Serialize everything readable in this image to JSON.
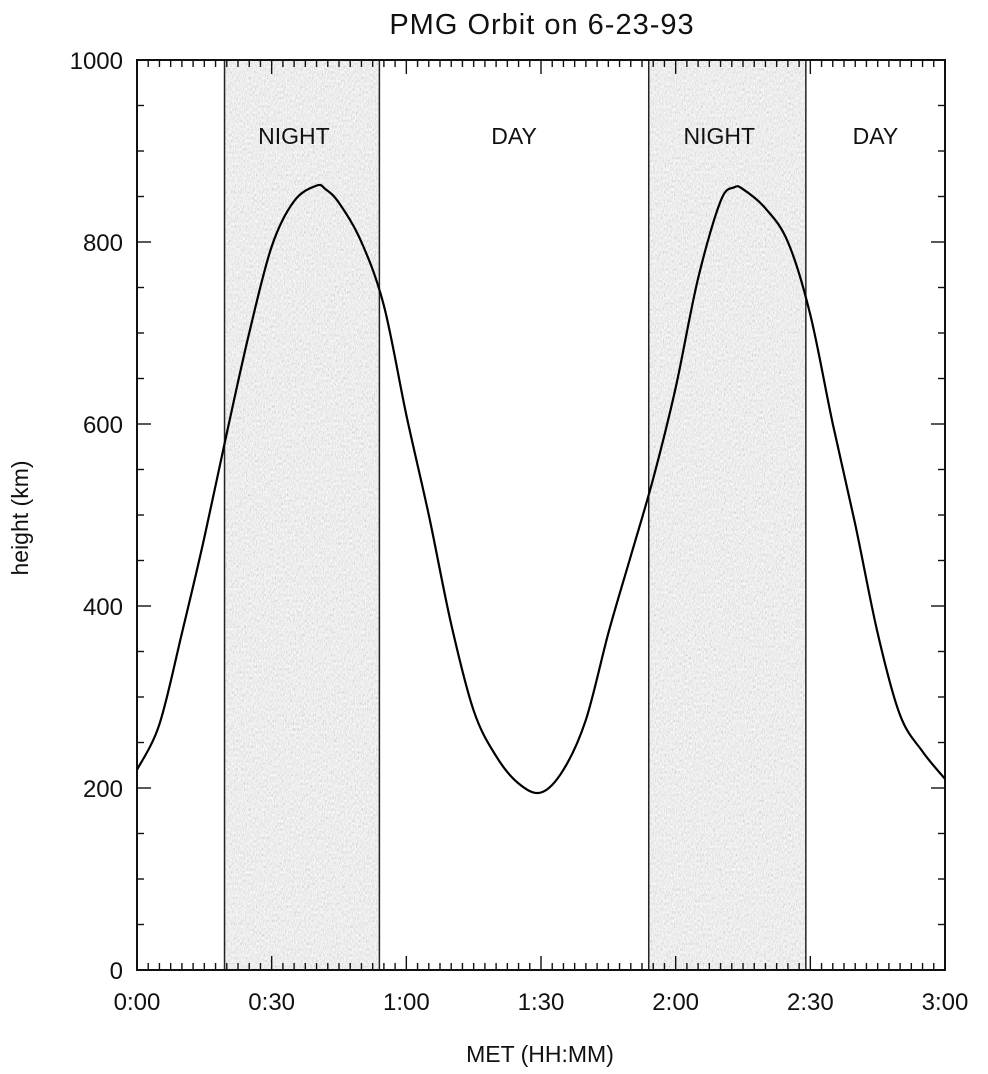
{
  "chart_data": {
    "type": "line",
    "title": "PMG Orbit on 6-23-93",
    "xlabel": "MET (HH:MM)",
    "ylabel": "height (km)",
    "xlim_minutes": [
      0,
      180
    ],
    "ylim": [
      0,
      1000
    ],
    "x_ticks": [
      {
        "value": 0,
        "label": "0:00"
      },
      {
        "value": 30,
        "label": "0:30"
      },
      {
        "value": 60,
        "label": "1:00"
      },
      {
        "value": 90,
        "label": "1:30"
      },
      {
        "value": 120,
        "label": "2:00"
      },
      {
        "value": 150,
        "label": "2:30"
      },
      {
        "value": 180,
        "label": "3:00"
      }
    ],
    "y_ticks": [
      {
        "value": 0,
        "label": "0"
      },
      {
        "value": 200,
        "label": "200"
      },
      {
        "value": 400,
        "label": "400"
      },
      {
        "value": 600,
        "label": "600"
      },
      {
        "value": 800,
        "label": "800"
      },
      {
        "value": 1000,
        "label": "1000"
      }
    ],
    "grid": false,
    "regions": [
      {
        "label": "NIGHT",
        "start": 19.5,
        "end": 54,
        "shaded": true
      },
      {
        "label": "DAY",
        "start": 54,
        "end": 114,
        "shaded": false
      },
      {
        "label": "NIGHT",
        "start": 114,
        "end": 149,
        "shaded": true
      },
      {
        "label": "DAY",
        "start": 149,
        "end": 180,
        "shaded": false
      }
    ],
    "series": [
      {
        "x": [
          0,
          5,
          10,
          15,
          20,
          25,
          30,
          35,
          40,
          42,
          45,
          50,
          55,
          60,
          65,
          70,
          75,
          80,
          85,
          90,
          95,
          100,
          105,
          110,
          115,
          120,
          125,
          130,
          133,
          135,
          140,
          145,
          150,
          155,
          160,
          165,
          170,
          175,
          180
        ],
        "values": [
          220,
          270,
          370,
          475,
          590,
          700,
          795,
          845,
          862,
          858,
          843,
          800,
          730,
          610,
          500,
          380,
          285,
          235,
          205,
          195,
          220,
          275,
          370,
          455,
          540,
          640,
          760,
          845,
          860,
          858,
          837,
          800,
          720,
          600,
          490,
          370,
          280,
          240,
          210
        ]
      }
    ]
  }
}
